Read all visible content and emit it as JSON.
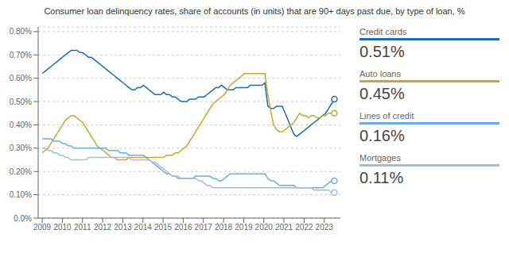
{
  "chart_data": {
    "type": "line",
    "title": "Consumer loan delinquency rates, share of accounts (in units) that are 90+ days past due, by type of loan, %",
    "x": [
      2009,
      2009.1436,
      2009.2871,
      2009.4307,
      2009.5743,
      2009.7178,
      2009.8614,
      2010.005,
      2010.1485,
      2010.2921,
      2010.4356,
      2010.5792,
      2010.7228,
      2010.8663,
      2011.0099,
      2011.1535,
      2011.297,
      2011.4406,
      2011.5842,
      2011.7277,
      2011.8713,
      2012.0149,
      2012.1584,
      2012.302,
      2012.4455,
      2012.5891,
      2012.7327,
      2012.8762,
      2013.0198,
      2013.1634,
      2013.3069,
      2013.4505,
      2013.5941,
      2013.7376,
      2013.8812,
      2014.0248,
      2014.1683,
      2014.3119,
      2014.4554,
      2014.599,
      2014.7426,
      2014.8861,
      2015.0297,
      2015.1733,
      2015.3168,
      2015.4604,
      2015.604,
      2015.7475,
      2015.8911,
      2016.0347,
      2016.1782,
      2016.3218,
      2016.4653,
      2016.6089,
      2016.7525,
      2016.896,
      2017.0396,
      2017.1832,
      2017.3267,
      2017.4703,
      2017.6139,
      2017.7574,
      2017.901,
      2018.0446,
      2018.1881,
      2018.3317,
      2018.4752,
      2018.6188,
      2018.7624,
      2018.9059,
      2019.0495,
      2019.1931,
      2019.3366,
      2019.4802,
      2019.6238,
      2019.7673,
      2019.9109,
      2020.0545,
      2020.198,
      2020.3416,
      2020.4851,
      2020.6287,
      2020.7723,
      2020.9158,
      2021.0594,
      2021.203,
      2021.3465,
      2021.4901,
      2021.6337,
      2021.7772,
      2021.9208,
      2022.0644,
      2022.2079,
      2022.3515,
      2022.495,
      2022.6386,
      2022.7822,
      2022.9257,
      2023.0693,
      2023.2129,
      2023.3564,
      2023.5
    ],
    "series": [
      {
        "name": "Credit cards",
        "color": "#1a6cb5",
        "end_label": "0.51%",
        "values": [
          0.0062,
          0.0063,
          0.0064,
          0.0065,
          0.0066,
          0.0067,
          0.0068,
          0.0069,
          0.007,
          0.0071,
          0.0072,
          0.0072,
          0.0072,
          0.0071,
          0.0071,
          0.007,
          0.0069,
          0.0069,
          0.0068,
          0.0067,
          0.0066,
          0.0065,
          0.0064,
          0.0063,
          0.0062,
          0.0061,
          0.006,
          0.0059,
          0.0058,
          0.0057,
          0.0056,
          0.0055,
          0.0055,
          0.0056,
          0.0056,
          0.0057,
          0.0056,
          0.0055,
          0.0054,
          0.0053,
          0.0053,
          0.0053,
          0.0054,
          0.0053,
          0.0053,
          0.0052,
          0.0052,
          0.0051,
          0.005,
          0.005,
          0.005,
          0.0051,
          0.0051,
          0.0051,
          0.0052,
          0.0052,
          0.0052,
          0.0053,
          0.0054,
          0.0055,
          0.0056,
          0.0056,
          0.0057,
          0.0056,
          0.0055,
          0.0055,
          0.0055,
          0.0056,
          0.0056,
          0.0056,
          0.0056,
          0.0056,
          0.0057,
          0.0057,
          0.0057,
          0.0057,
          0.0057,
          0.0058,
          0.0048,
          0.0047,
          0.0047,
          0.0048,
          0.0048,
          0.0048,
          0.0045,
          0.0042,
          0.0039,
          0.0036,
          0.0035,
          0.0036,
          0.0037,
          0.0038,
          0.0039,
          0.004,
          0.0041,
          0.0042,
          0.0043,
          0.0044,
          0.0045,
          0.0047,
          0.0049,
          0.0051
        ]
      },
      {
        "name": "Auto loans",
        "color": "#c8a830",
        "end_label": "0.45%",
        "values": [
          0.0028,
          0.0029,
          0.003,
          0.0032,
          0.0034,
          0.0036,
          0.0038,
          0.004,
          0.0042,
          0.0043,
          0.0044,
          0.0044,
          0.0043,
          0.0042,
          0.0041,
          0.0039,
          0.0037,
          0.0035,
          0.0033,
          0.0031,
          0.003,
          0.0029,
          0.0028,
          0.0027,
          0.0026,
          0.0026,
          0.0025,
          0.0025,
          0.0025,
          0.0025,
          0.0026,
          0.0026,
          0.0026,
          0.0026,
          0.0026,
          0.0026,
          0.0026,
          0.0026,
          0.0026,
          0.0026,
          0.0026,
          0.0026,
          0.0026,
          0.0027,
          0.0027,
          0.0027,
          0.0028,
          0.0028,
          0.0029,
          0.003,
          0.0031,
          0.0033,
          0.0035,
          0.0037,
          0.0039,
          0.0041,
          0.0043,
          0.0045,
          0.0047,
          0.0049,
          0.005,
          0.0051,
          0.0052,
          0.0053,
          0.0055,
          0.0057,
          0.0058,
          0.0059,
          0.006,
          0.0061,
          0.0062,
          0.0062,
          0.0062,
          0.0062,
          0.0062,
          0.0062,
          0.0062,
          0.0062,
          0.0053,
          0.0046,
          0.004,
          0.0038,
          0.0037,
          0.0037,
          0.0038,
          0.0039,
          0.004,
          0.0041,
          0.0043,
          0.0045,
          0.0044,
          0.0044,
          0.0043,
          0.0044,
          0.0044,
          0.0043,
          0.0043,
          0.0044,
          0.0044,
          0.0045,
          0.0045,
          0.0045
        ]
      },
      {
        "name": "Lines of credit",
        "color": "#6aaee0",
        "end_label": "0.16%",
        "values": [
          0.0034,
          0.0034,
          0.0034,
          0.0034,
          0.0033,
          0.0033,
          0.0033,
          0.0032,
          0.0032,
          0.0031,
          0.0031,
          0.003,
          0.003,
          0.003,
          0.003,
          0.003,
          0.003,
          0.003,
          0.003,
          0.003,
          0.003,
          0.003,
          0.003,
          0.0029,
          0.0029,
          0.0029,
          0.0029,
          0.0028,
          0.0028,
          0.0028,
          0.0027,
          0.0027,
          0.0027,
          0.0027,
          0.0027,
          0.0027,
          0.0026,
          0.0025,
          0.0024,
          0.0023,
          0.0022,
          0.0021,
          0.002,
          0.0019,
          0.0019,
          0.0018,
          0.0018,
          0.0017,
          0.0017,
          0.0017,
          0.0017,
          0.0017,
          0.0017,
          0.0018,
          0.0018,
          0.0018,
          0.0018,
          0.0018,
          0.0018,
          0.0017,
          0.0017,
          0.0016,
          0.0016,
          0.0017,
          0.0018,
          0.0019,
          0.0019,
          0.0019,
          0.0019,
          0.0019,
          0.0019,
          0.0019,
          0.0019,
          0.0019,
          0.0019,
          0.0019,
          0.0019,
          0.0019,
          0.0017,
          0.0016,
          0.0016,
          0.0015,
          0.0014,
          0.0014,
          0.0014,
          0.0014,
          0.0014,
          0.0014,
          0.0013,
          0.0013,
          0.0013,
          0.0013,
          0.0013,
          0.0013,
          0.0013,
          0.0013,
          0.0013,
          0.0013,
          0.0014,
          0.0015,
          0.0016,
          0.0016
        ]
      },
      {
        "name": "Mortgages",
        "color": "#aabdcf",
        "end_label": "0.11%",
        "values": [
          0.003,
          0.003,
          0.0029,
          0.0029,
          0.0028,
          0.0028,
          0.0027,
          0.0027,
          0.0026,
          0.0026,
          0.0025,
          0.0025,
          0.0025,
          0.0025,
          0.0025,
          0.0025,
          0.0026,
          0.0026,
          0.0026,
          0.0026,
          0.0026,
          0.0026,
          0.0026,
          0.0026,
          0.0026,
          0.0026,
          0.0026,
          0.0026,
          0.0026,
          0.0026,
          0.0026,
          0.0025,
          0.0025,
          0.0025,
          0.0025,
          0.0025,
          0.0025,
          0.0025,
          0.0024,
          0.0024,
          0.0023,
          0.0022,
          0.0021,
          0.002,
          0.0019,
          0.0018,
          0.0018,
          0.0018,
          0.0017,
          0.0017,
          0.0017,
          0.0017,
          0.0017,
          0.0017,
          0.0016,
          0.0016,
          0.0015,
          0.0014,
          0.0014,
          0.0013,
          0.0013,
          0.0013,
          0.0013,
          0.0013,
          0.0013,
          0.0013,
          0.0013,
          0.0013,
          0.0013,
          0.0013,
          0.0013,
          0.0013,
          0.0013,
          0.0013,
          0.0013,
          0.0013,
          0.0013,
          0.0013,
          0.0013,
          0.0013,
          0.0013,
          0.0013,
          0.0013,
          0.0013,
          0.0013,
          0.0013,
          0.0013,
          0.0013,
          0.0013,
          0.0013,
          0.0013,
          0.0013,
          0.0013,
          0.0013,
          0.0012,
          0.0012,
          0.0012,
          0.0012,
          0.0012,
          0.0012,
          0.0011,
          0.0011
        ]
      }
    ],
    "xlim": [
      2008.8,
      2023.8
    ],
    "xticks": [
      2009,
      2010,
      2011,
      2012,
      2013,
      2014,
      2015,
      2016,
      2017,
      2018,
      2019,
      2020,
      2021,
      2022,
      2023
    ],
    "ylim": [
      0,
      0.0082
    ],
    "yticks": [
      {
        "value": 0.0,
        "label": "0.0%"
      },
      {
        "value": 0.001,
        "label": "0.10%"
      },
      {
        "value": 0.002,
        "label": "0.20%"
      },
      {
        "value": 0.003,
        "label": "0.30%"
      },
      {
        "value": 0.004,
        "label": "0.40%"
      },
      {
        "value": 0.005,
        "label": "0.50%"
      },
      {
        "value": 0.006,
        "label": "0.60%"
      },
      {
        "value": 0.007,
        "label": "0.70%"
      },
      {
        "value": 0.008,
        "label": "0.80%"
      }
    ],
    "grid": "y",
    "legend": "right"
  }
}
